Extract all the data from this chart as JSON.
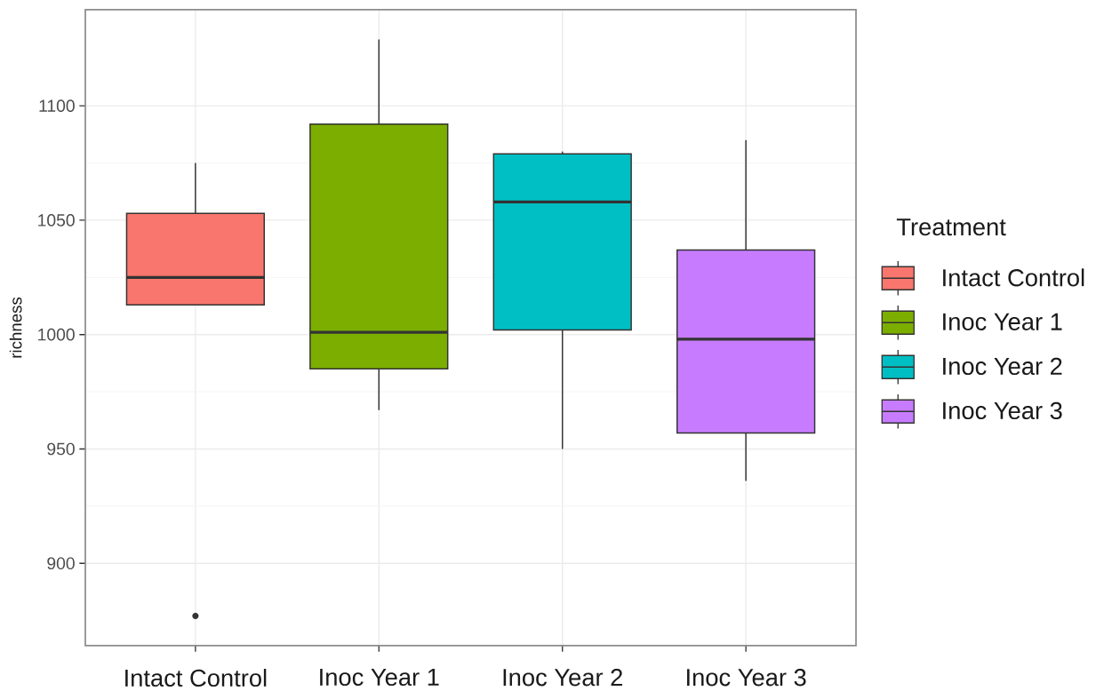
{
  "chart_data": {
    "type": "box",
    "categories": [
      "Intact Control",
      "Inoc Year 1",
      "Inoc Year 2",
      "Inoc Year 3"
    ],
    "series": [
      {
        "name": "Intact Control",
        "color": "#F8766D",
        "boxes": [
          {
            "low": 1013,
            "q1": 1013,
            "median": 1025,
            "q3": 1053,
            "high": 1075,
            "outliers": [
              877
            ]
          },
          null,
          null,
          null
        ]
      },
      {
        "name": "Inoc Year 1",
        "color": "#7CAE00",
        "boxes": [
          null,
          {
            "low": 967,
            "q1": 985,
            "median": 1001,
            "q3": 1092,
            "high": 1129
          },
          null,
          null
        ]
      },
      {
        "name": "Inoc Year 2",
        "color": "#00BFC4",
        "boxes": [
          null,
          null,
          {
            "low": 950,
            "q1": 1002,
            "median": 1058,
            "q3": 1079,
            "high": 1080
          },
          null
        ]
      },
      {
        "name": "Inoc Year 3",
        "color": "#C77CFF",
        "boxes": [
          null,
          null,
          null,
          {
            "low": 936,
            "q1": 957,
            "median": 998,
            "q3": 1037,
            "high": 1085
          }
        ]
      }
    ],
    "ylabel": "richness",
    "legend_title": "Treatment",
    "legend": "right",
    "ylim": [
      864,
      1142
    ],
    "yticks": [
      900,
      950,
      1000,
      1050,
      1100
    ],
    "grid": true
  }
}
